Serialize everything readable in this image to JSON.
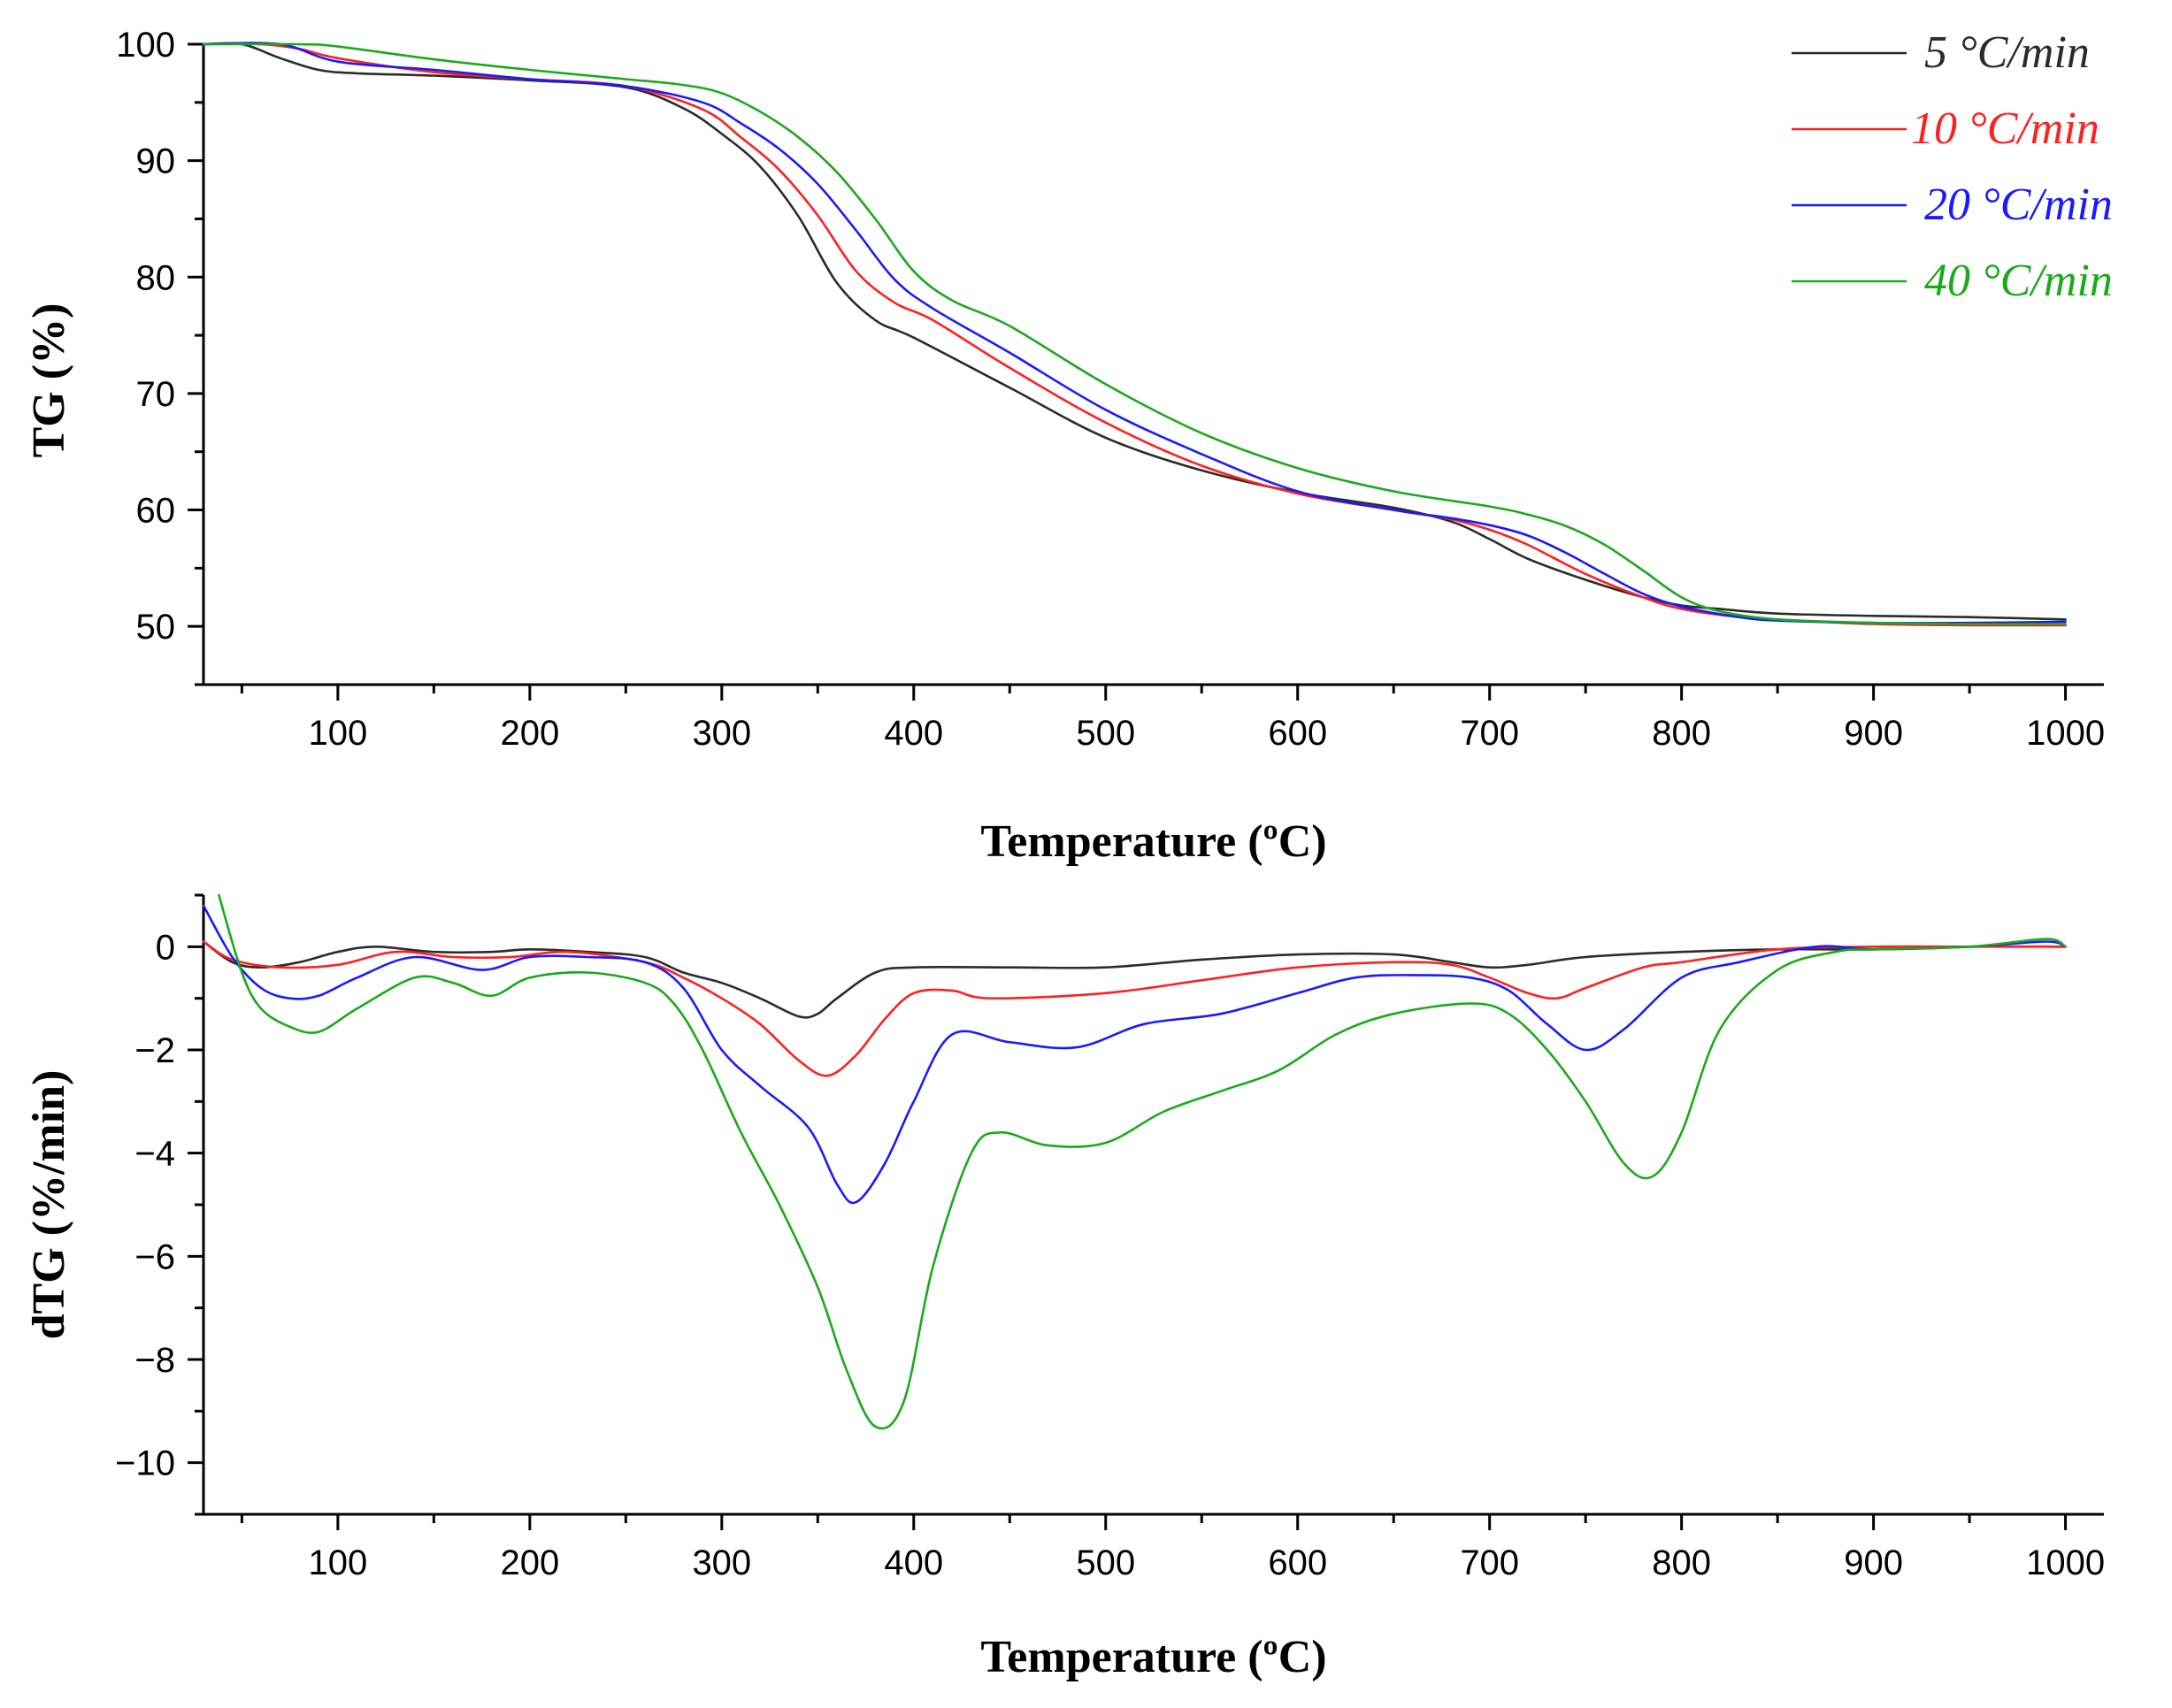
{
  "legend": [
    {
      "label": "5 °C/min",
      "color": "#2b2b2b"
    },
    {
      "label": "10 °C/min",
      "color": "#ff2020"
    },
    {
      "label": "20 °C/min",
      "color": "#1a1aff"
    },
    {
      "label": "40 °C/min",
      "color": "#1aaa1a"
    }
  ],
  "chart_data": [
    {
      "type": "line",
      "title": "",
      "xlabel": "Temperature (ºC)",
      "ylabel": "TG (%)",
      "xlim": [
        30,
        1020
      ],
      "ylim": [
        45,
        100
      ],
      "xticks": [
        100,
        200,
        300,
        400,
        500,
        600,
        700,
        800,
        900,
        1000
      ],
      "yticks": [
        50,
        60,
        70,
        80,
        90,
        100
      ],
      "series": [
        {
          "name": "5 °C/min",
          "color": "#2b2b2b",
          "x": [
            30,
            50,
            70,
            90,
            110,
            150,
            200,
            250,
            280,
            300,
            320,
            340,
            360,
            380,
            400,
            450,
            500,
            550,
            600,
            650,
            680,
            700,
            720,
            750,
            780,
            800,
            820,
            850,
            900,
            950,
            1000
          ],
          "y": [
            100,
            100,
            98.8,
            97.8,
            97.5,
            97.3,
            96.9,
            96.3,
            94.5,
            92.3,
            89.5,
            85.2,
            79.5,
            76.3,
            74.8,
            70.5,
            66.2,
            63.4,
            61.5,
            60.2,
            59.0,
            57.5,
            55.8,
            54.0,
            52.5,
            51.8,
            51.5,
            51.1,
            50.9,
            50.8,
            50.6
          ]
        },
        {
          "name": "10 °C/min",
          "color": "#ff2020",
          "x": [
            30,
            60,
            80,
            100,
            150,
            200,
            250,
            290,
            310,
            330,
            350,
            370,
            390,
            410,
            450,
            500,
            550,
            600,
            650,
            680,
            700,
            720,
            750,
            780,
            800,
            830,
            850,
            900,
            950,
            1000
          ],
          "y": [
            100,
            100,
            99.6,
            98.8,
            97.6,
            97.0,
            96.4,
            94.4,
            92.0,
            89.2,
            85.3,
            80.5,
            77.8,
            76.3,
            72.2,
            67.5,
            63.8,
            61.4,
            60.0,
            59.2,
            58.3,
            57.0,
            54.5,
            52.5,
            51.5,
            50.8,
            50.6,
            50.2,
            50.1,
            50.1
          ]
        },
        {
          "name": "20 °C/min",
          "color": "#1a1aff",
          "x": [
            30,
            70,
            100,
            150,
            200,
            250,
            290,
            310,
            330,
            350,
            370,
            390,
            410,
            450,
            500,
            550,
            600,
            650,
            680,
            700,
            720,
            740,
            760,
            780,
            800,
            830,
            850,
            900,
            950,
            1000
          ],
          "y": [
            100,
            100,
            98.5,
            97.8,
            97.0,
            96.4,
            95.0,
            93.2,
            91.0,
            88.0,
            84.0,
            79.8,
            77.3,
            73.5,
            68.6,
            64.8,
            61.6,
            60.0,
            59.3,
            58.7,
            57.8,
            56.3,
            54.5,
            52.8,
            51.7,
            50.8,
            50.5,
            50.3,
            50.3,
            50.4
          ]
        },
        {
          "name": "40 °C/min",
          "color": "#1aaa1a",
          "x": [
            30,
            80,
            100,
            150,
            200,
            250,
            280,
            300,
            320,
            340,
            360,
            380,
            400,
            420,
            450,
            500,
            550,
            600,
            650,
            700,
            720,
            740,
            760,
            780,
            800,
            820,
            850,
            900,
            950,
            1000
          ],
          "y": [
            100,
            100,
            99.8,
            98.7,
            97.8,
            97.0,
            96.5,
            95.8,
            94.2,
            92.0,
            89.0,
            85.0,
            80.5,
            78.0,
            75.8,
            70.8,
            66.6,
            63.6,
            61.6,
            60.3,
            59.6,
            58.6,
            57.0,
            54.8,
            52.5,
            51.3,
            50.6,
            50.3,
            50.2,
            50.2
          ]
        }
      ]
    },
    {
      "type": "line",
      "title": "",
      "xlabel": "Temperature (ºC)",
      "ylabel": "dTG (%/min)",
      "xlim": [
        30,
        1020
      ],
      "ylim": [
        -11,
        1
      ],
      "xticks": [
        100,
        200,
        300,
        400,
        500,
        600,
        700,
        800,
        900,
        1000
      ],
      "yticks": [
        0,
        -2,
        -4,
        -6,
        -8,
        -10
      ],
      "ytick_labels": [
        "0",
        "−2",
        "−4",
        "−6",
        "−8",
        "−10"
      ],
      "series": [
        {
          "name": "5 °C/min",
          "color": "#2b2b2b",
          "x": [
            30,
            45,
            60,
            80,
            100,
            120,
            150,
            180,
            200,
            230,
            260,
            280,
            300,
            320,
            340,
            350,
            360,
            380,
            400,
            450,
            500,
            550,
            600,
            650,
            680,
            700,
            720,
            750,
            800,
            850,
            900,
            950,
            1000
          ],
          "y": [
            0.1,
            -0.3,
            -0.4,
            -0.3,
            -0.1,
            0.0,
            -0.1,
            -0.1,
            -0.05,
            -0.1,
            -0.2,
            -0.5,
            -0.7,
            -1.0,
            -1.35,
            -1.3,
            -1.0,
            -0.5,
            -0.4,
            -0.4,
            -0.4,
            -0.25,
            -0.15,
            -0.15,
            -0.3,
            -0.4,
            -0.35,
            -0.2,
            -0.1,
            -0.05,
            -0.05,
            0.0,
            0.0
          ]
        },
        {
          "name": "10 °C/min",
          "color": "#ff2020",
          "x": [
            30,
            45,
            70,
            100,
            130,
            160,
            190,
            220,
            260,
            280,
            300,
            320,
            340,
            355,
            370,
            385,
            400,
            420,
            440,
            500,
            550,
            600,
            650,
            680,
            700,
            720,
            735,
            750,
            780,
            800,
            850,
            900,
            950,
            1000
          ],
          "y": [
            0.1,
            -0.25,
            -0.4,
            -0.35,
            -0.1,
            -0.2,
            -0.2,
            -0.1,
            -0.3,
            -0.6,
            -1.0,
            -1.5,
            -2.2,
            -2.5,
            -2.1,
            -1.4,
            -0.9,
            -0.85,
            -1.0,
            -0.9,
            -0.65,
            -0.4,
            -0.3,
            -0.35,
            -0.6,
            -0.9,
            -1.0,
            -0.8,
            -0.4,
            -0.3,
            -0.05,
            0.0,
            0.0,
            0.0
          ]
        },
        {
          "name": "20 °C/min",
          "color": "#1a1aff",
          "x": [
            30,
            45,
            60,
            75,
            90,
            110,
            140,
            175,
            200,
            230,
            260,
            280,
            300,
            320,
            345,
            360,
            370,
            385,
            400,
            420,
            450,
            485,
            520,
            560,
            600,
            630,
            660,
            690,
            710,
            730,
            750,
            770,
            800,
            830,
            870,
            900,
            950,
            990,
            1000
          ],
          "y": [
            0.8,
            -0.2,
            -0.8,
            -1.0,
            -0.95,
            -0.6,
            -0.2,
            -0.45,
            -0.2,
            -0.2,
            -0.3,
            -0.8,
            -2.0,
            -2.7,
            -3.5,
            -4.6,
            -4.95,
            -4.2,
            -3.0,
            -1.7,
            -1.85,
            -1.95,
            -1.5,
            -1.3,
            -0.9,
            -0.6,
            -0.55,
            -0.6,
            -0.85,
            -1.5,
            -2.0,
            -1.6,
            -0.6,
            -0.3,
            0.0,
            -0.05,
            0.0,
            0.1,
            0.0
          ]
        },
        {
          "name": "40 °C/min",
          "color": "#1aaa1a",
          "x": [
            38,
            50,
            60,
            75,
            90,
            110,
            140,
            160,
            180,
            200,
            230,
            260,
            275,
            290,
            310,
            330,
            350,
            365,
            380,
            395,
            410,
            430,
            445,
            470,
            500,
            530,
            560,
            590,
            620,
            650,
            690,
            710,
            730,
            750,
            770,
            785,
            800,
            820,
            850,
            880,
            900,
            950,
            990,
            1000
          ],
          "y": [
            1.0,
            -0.5,
            -1.2,
            -1.55,
            -1.65,
            -1.2,
            -0.6,
            -0.7,
            -0.95,
            -0.6,
            -0.5,
            -0.7,
            -1.1,
            -2.0,
            -3.6,
            -5.0,
            -6.6,
            -8.2,
            -9.3,
            -8.8,
            -6.2,
            -4.0,
            -3.6,
            -3.85,
            -3.8,
            -3.2,
            -2.8,
            -2.4,
            -1.7,
            -1.3,
            -1.1,
            -1.3,
            -2.0,
            -3.0,
            -4.2,
            -4.45,
            -3.6,
            -1.6,
            -0.45,
            -0.1,
            -0.05,
            0.0,
            0.15,
            0.0
          ]
        }
      ]
    }
  ]
}
